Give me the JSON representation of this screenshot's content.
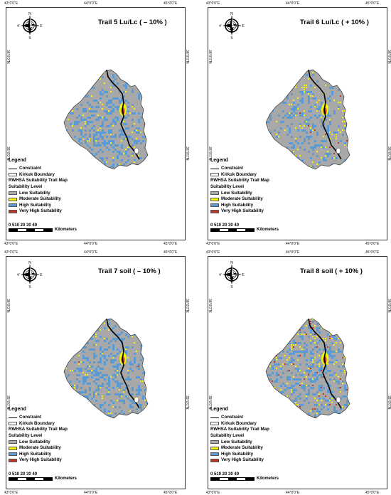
{
  "panels": [
    {
      "title": "Trail 5 Lu/Lc  ( – 10% )",
      "variant": "lulc-minus",
      "coord_top": [
        "43°0'0\"E",
        "44°0'0\"E",
        "45°0'0\"E"
      ],
      "coord_side_top": "36°0'0\"N",
      "coord_side_bottom": "35°0'0\"N",
      "coord_bottom": [
        "43°0'0\"E",
        "44°0'0\"E",
        "45°0'0\"E"
      ]
    },
    {
      "title": "Trail 6 Lu/Lc  ( + 10% )",
      "variant": "lulc-plus",
      "coord_top": [
        "43°0'0\"E",
        "44°0'0\"E",
        "45°0'0\"E"
      ],
      "coord_side_top": "36°0'0\"N",
      "coord_side_bottom": "35°0'0\"N",
      "coord_bottom": [
        "43°0'0\"E",
        "44°0'0\"E",
        "45°0'0\"E"
      ]
    },
    {
      "title": "Trail 7  soil  ( – 10% )",
      "variant": "soil-minus",
      "coord_top": [
        "43°0'0\"E",
        "44°0'0\"E",
        "45°0'0\"E"
      ],
      "coord_side_top": "36°0'0\"N",
      "coord_side_bottom": "35°0'0\"N",
      "coord_bottom": [
        "43°0'0\"E",
        "44°0'0\"E",
        "45°0'0\"E"
      ]
    },
    {
      "title": "Trail 8  soil  ( + 10% )",
      "variant": "soil-plus",
      "coord_top": [
        "43°0'0\"E",
        "44°0'0\"E",
        "45°0'0\"E"
      ],
      "coord_side_top": "36°0'0\"N",
      "coord_side_bottom": "35°0'0\"N",
      "coord_bottom": [
        "43°0'0\"E",
        "44°0'0\"E",
        "45°0'0\"E"
      ]
    }
  ],
  "compass": {
    "n": "N",
    "s": "S",
    "e": "E",
    "w": "W"
  },
  "legend": {
    "title": "Legend",
    "constraint": "Constraint",
    "boundary": "Kirkuk Boundary",
    "map_title": "RWHSA Suitability  Trail Map",
    "level_title": "Suitability Level",
    "classes": [
      {
        "label": "Low Suitability",
        "color": "#a8a8a8"
      },
      {
        "label": "Moderate Suitability",
        "color": "#f5f500"
      },
      {
        "label": "High Suitability",
        "color": "#5b9bd5"
      },
      {
        "label": "Very High Suitability",
        "color": "#c0392b"
      }
    ]
  },
  "scale": {
    "ticks": "0 510  20  30  40",
    "unit": "Kilometers"
  }
}
